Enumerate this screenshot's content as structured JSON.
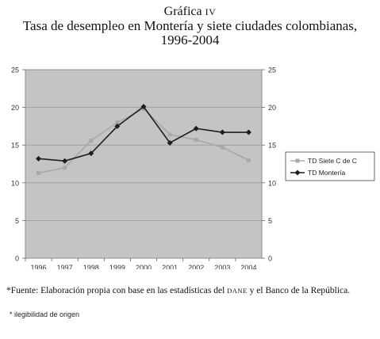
{
  "figure": {
    "label": "Gráfica",
    "numeral": "IV",
    "title_line1": "Tasa de desempleo en Montería y siete ciudades colombianas,",
    "title_line2": "1996-2004"
  },
  "chart_data": {
    "type": "line",
    "title": "",
    "xlabel": "",
    "ylabel": "",
    "categories": [
      "1996",
      "1997",
      "1998",
      "1999",
      "2000",
      "2001",
      "2002",
      "2003",
      "2004"
    ],
    "ylim": [
      0,
      25
    ],
    "yticks": [
      0,
      5,
      10,
      15,
      20,
      25
    ],
    "grid": "horizontal",
    "secondary_y_axis": true,
    "legend_position": "right",
    "series": [
      {
        "name": "TD Siete C de C",
        "color": "#a8a8a8",
        "marker": "square",
        "values": [
          11.3,
          12.0,
          15.6,
          18.0,
          19.8,
          16.4,
          15.7,
          14.7,
          13.0
        ]
      },
      {
        "name": "TD Montería",
        "color": "#1e1e1e",
        "marker": "diamond",
        "values": [
          13.2,
          12.9,
          13.9,
          17.5,
          20.1,
          15.3,
          17.2,
          16.7,
          16.7
        ]
      }
    ]
  },
  "footnote": {
    "marker": "*",
    "text_a": "Fuente: Elaboración propia con base en las estadísticas del ",
    "dane": "DANE",
    "text_b": " y el Banco de la República."
  },
  "note2": "* ilegibilidad de origen"
}
